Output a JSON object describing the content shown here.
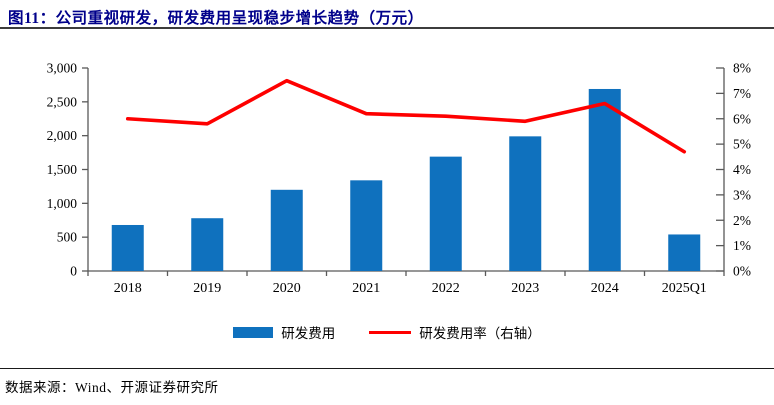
{
  "header": {
    "title": "图11：公司重视研发，研发费用呈现稳步增长趋势（万元）"
  },
  "chart_data": {
    "type": "bar",
    "subtype": "bar-line-combo",
    "categories": [
      "2018",
      "2019",
      "2020",
      "2021",
      "2022",
      "2023",
      "2024",
      "2025Q1"
    ],
    "series": [
      {
        "name": "研发费用",
        "type": "bar",
        "axis": "left",
        "color": "#0F71BE",
        "values": [
          680,
          780,
          1200,
          1340,
          1690,
          1990,
          2690,
          540
        ]
      },
      {
        "name": "研发费用率（右轴）",
        "type": "line",
        "axis": "right",
        "color": "#FE0000",
        "values": [
          6.0,
          5.8,
          7.5,
          6.2,
          6.1,
          5.9,
          6.6,
          4.7
        ]
      }
    ],
    "title": "公司重视研发，研发费用呈现稳步增长趋势（万元）",
    "xlabel": "",
    "ylabel": "",
    "left_axis": {
      "min": 0,
      "max": 3000,
      "step": 500,
      "tick_labels": [
        "0",
        "500",
        "1,000",
        "1,500",
        "2,000",
        "2,500",
        "3,000"
      ]
    },
    "right_axis": {
      "min": 0,
      "max": 8,
      "step": 1,
      "tick_labels": [
        "0%",
        "1%",
        "2%",
        "3%",
        "4%",
        "5%",
        "6%",
        "7%",
        "8%"
      ]
    },
    "grid": false,
    "legend_position": "bottom",
    "axis_color": "#595959"
  },
  "legend": {
    "items": [
      {
        "label": "研发费用",
        "swatch": "bar",
        "color": "#0F71BE"
      },
      {
        "label": "研发费用率（右轴）",
        "swatch": "line",
        "color": "#FE0000"
      }
    ]
  },
  "footer": {
    "source": "数据来源：Wind、开源证券研究所"
  },
  "colors": {
    "title": "#00008B",
    "bar": "#0F71BE",
    "line": "#FE0000",
    "axis": "#595959"
  }
}
